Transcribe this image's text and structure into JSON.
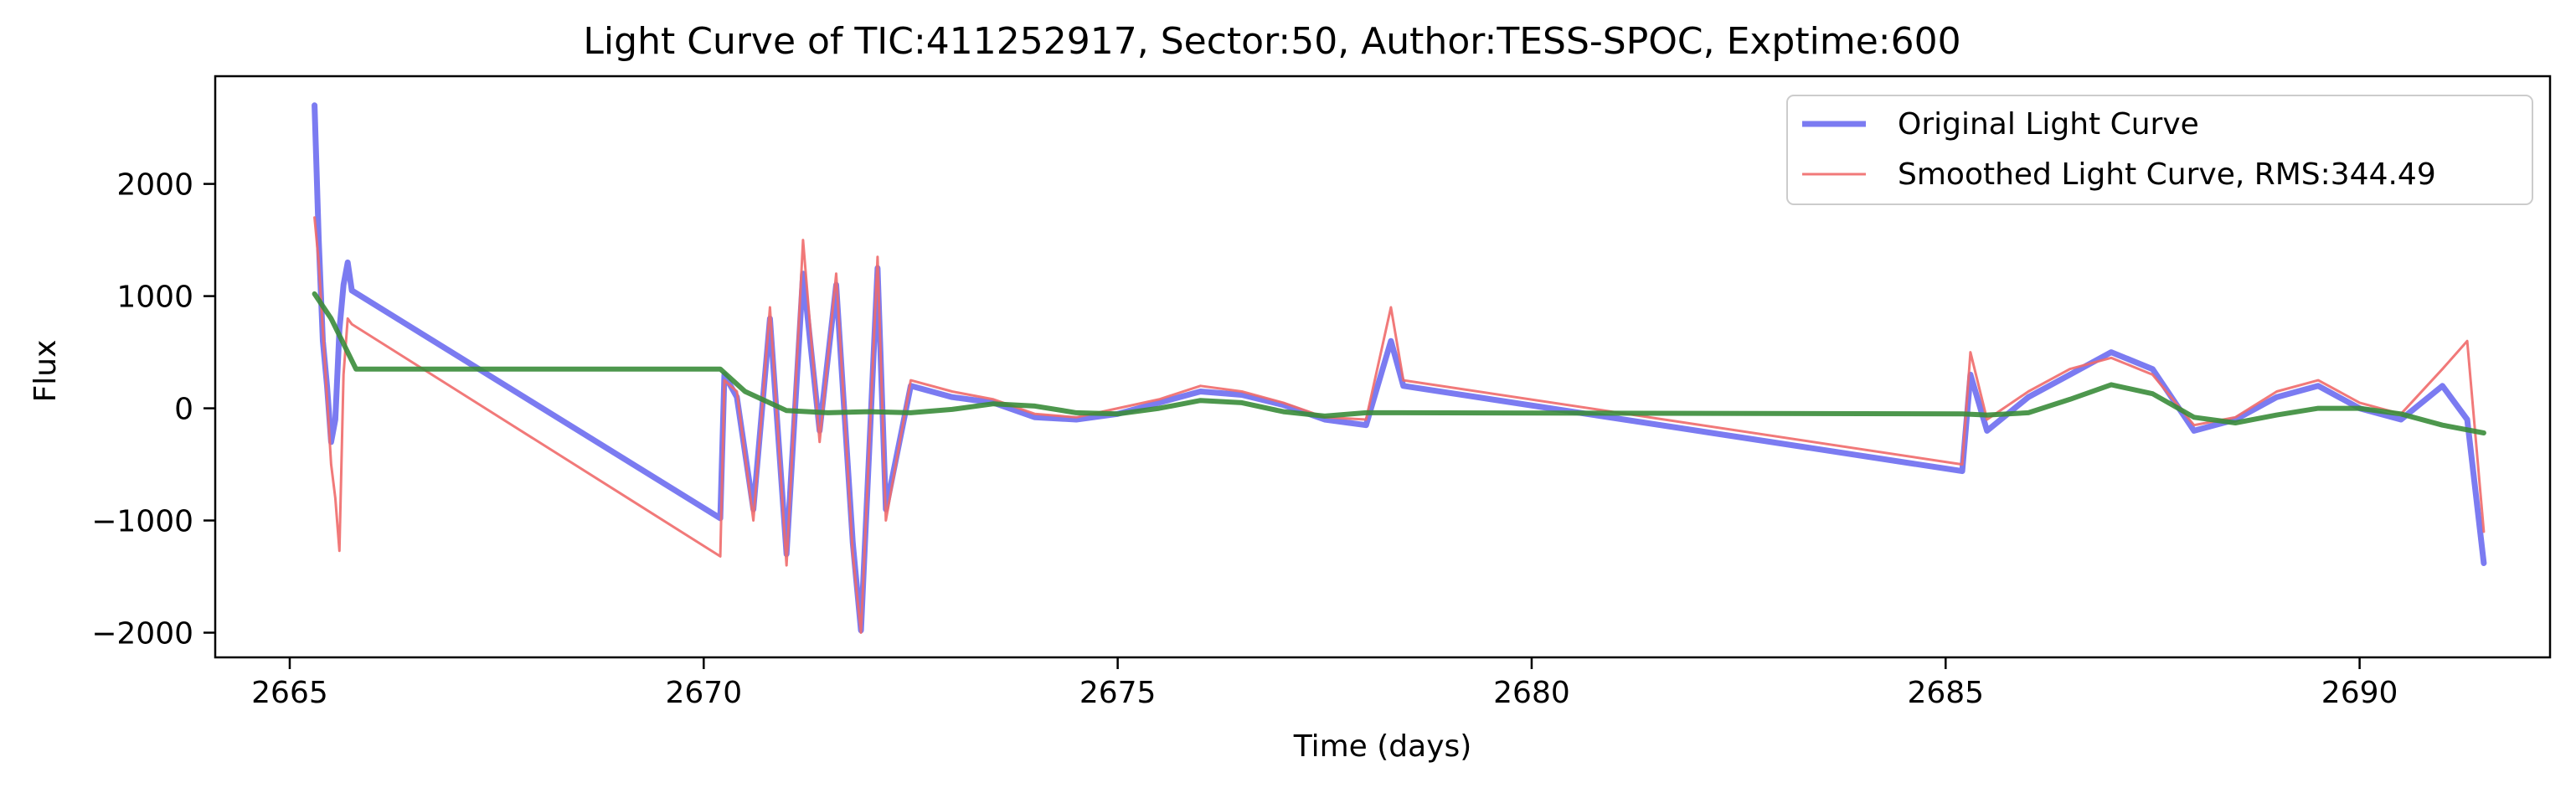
{
  "chart_data": {
    "type": "line",
    "title": "Light Curve of TIC:411252917, Sector:50, Author:TESS-SPOC, Exptime:600",
    "xlabel": "Time (days)",
    "ylabel": "Flux",
    "xlim": [
      2664.1,
      2692.3
    ],
    "ylim": [
      -2220,
      2960
    ],
    "xticks": [
      2665,
      2670,
      2675,
      2680,
      2685,
      2690
    ],
    "yticks": [
      -2000,
      -1000,
      0,
      1000,
      2000
    ],
    "xtick_labels": [
      "2665",
      "2670",
      "2675",
      "2680",
      "2685",
      "2690"
    ],
    "ytick_labels": [
      "−2000",
      "−1000",
      "0",
      "1000",
      "2000"
    ],
    "grid": false,
    "legend_position": "top-right",
    "series": [
      {
        "name": "Original Light Curve",
        "color": "#5a5aee",
        "points": [
          [
            2665.3,
            2700
          ],
          [
            2665.35,
            1500
          ],
          [
            2665.4,
            600
          ],
          [
            2665.45,
            200
          ],
          [
            2665.5,
            -300
          ],
          [
            2665.55,
            -100
          ],
          [
            2665.6,
            700
          ],
          [
            2665.65,
            1100
          ],
          [
            2665.7,
            1300
          ],
          [
            2665.75,
            1050
          ],
          [
            2670.2,
            -980
          ],
          [
            2670.25,
            300
          ],
          [
            2670.4,
            100
          ],
          [
            2670.6,
            -900
          ],
          [
            2670.8,
            800
          ],
          [
            2671.0,
            -1300
          ],
          [
            2671.2,
            1200
          ],
          [
            2671.4,
            -200
          ],
          [
            2671.6,
            1100
          ],
          [
            2671.8,
            -1200
          ],
          [
            2671.9,
            -1980
          ],
          [
            2672.1,
            1250
          ],
          [
            2672.2,
            -900
          ],
          [
            2672.5,
            200
          ],
          [
            2673.0,
            100
          ],
          [
            2673.5,
            50
          ],
          [
            2674.0,
            -80
          ],
          [
            2674.5,
            -100
          ],
          [
            2675.0,
            -50
          ],
          [
            2675.5,
            50
          ],
          [
            2676.0,
            150
          ],
          [
            2676.5,
            120
          ],
          [
            2677.0,
            30
          ],
          [
            2677.5,
            -100
          ],
          [
            2678.0,
            -150
          ],
          [
            2678.3,
            600
          ],
          [
            2678.45,
            200
          ],
          [
            2685.2,
            -560
          ],
          [
            2685.3,
            300
          ],
          [
            2685.5,
            -200
          ],
          [
            2686.0,
            100
          ],
          [
            2686.5,
            300
          ],
          [
            2687.0,
            500
          ],
          [
            2687.5,
            350
          ],
          [
            2688.0,
            -200
          ],
          [
            2688.5,
            -100
          ],
          [
            2689.0,
            100
          ],
          [
            2689.5,
            200
          ],
          [
            2690.0,
            0
          ],
          [
            2690.5,
            -100
          ],
          [
            2691.0,
            200
          ],
          [
            2691.3,
            -100
          ],
          [
            2691.5,
            -1380
          ]
        ]
      },
      {
        "name": "Smoothed Light Curve, RMS:344.49",
        "color": "#f06a6a",
        "points": [
          [
            2665.3,
            1700
          ],
          [
            2665.35,
            1300
          ],
          [
            2665.4,
            700
          ],
          [
            2665.45,
            100
          ],
          [
            2665.5,
            -500
          ],
          [
            2665.55,
            -800
          ],
          [
            2665.6,
            -1270
          ],
          [
            2665.65,
            300
          ],
          [
            2665.7,
            800
          ],
          [
            2665.75,
            750
          ],
          [
            2670.2,
            -1320
          ],
          [
            2670.25,
            250
          ],
          [
            2670.4,
            150
          ],
          [
            2670.6,
            -1000
          ],
          [
            2670.8,
            900
          ],
          [
            2671.0,
            -1400
          ],
          [
            2671.2,
            1500
          ],
          [
            2671.4,
            -300
          ],
          [
            2671.6,
            1200
          ],
          [
            2671.8,
            -1300
          ],
          [
            2671.9,
            -2000
          ],
          [
            2672.1,
            1350
          ],
          [
            2672.2,
            -1000
          ],
          [
            2672.5,
            250
          ],
          [
            2673.0,
            150
          ],
          [
            2673.5,
            80
          ],
          [
            2674.0,
            -50
          ],
          [
            2674.5,
            -80
          ],
          [
            2675.0,
            0
          ],
          [
            2675.5,
            80
          ],
          [
            2676.0,
            200
          ],
          [
            2676.5,
            150
          ],
          [
            2677.0,
            50
          ],
          [
            2677.5,
            -80
          ],
          [
            2678.0,
            -100
          ],
          [
            2678.3,
            900
          ],
          [
            2678.45,
            250
          ],
          [
            2685.2,
            -500
          ],
          [
            2685.3,
            500
          ],
          [
            2685.5,
            -100
          ],
          [
            2686.0,
            150
          ],
          [
            2686.5,
            350
          ],
          [
            2687.0,
            450
          ],
          [
            2687.5,
            300
          ],
          [
            2688.0,
            -150
          ],
          [
            2688.5,
            -80
          ],
          [
            2689.0,
            150
          ],
          [
            2689.5,
            250
          ],
          [
            2690.0,
            50
          ],
          [
            2690.5,
            -50
          ],
          [
            2691.0,
            350
          ],
          [
            2691.3,
            600
          ],
          [
            2691.5,
            -1100
          ]
        ]
      },
      {
        "name": "",
        "color": "#3a8c3a",
        "points": [
          [
            2665.3,
            1020
          ],
          [
            2665.5,
            800
          ],
          [
            2665.8,
            350
          ],
          [
            2670.2,
            350
          ],
          [
            2670.5,
            150
          ],
          [
            2671.0,
            -20
          ],
          [
            2671.5,
            -40
          ],
          [
            2672.0,
            -30
          ],
          [
            2672.5,
            -40
          ],
          [
            2673.0,
            -10
          ],
          [
            2673.5,
            40
          ],
          [
            2674.0,
            20
          ],
          [
            2674.5,
            -40
          ],
          [
            2675.0,
            -50
          ],
          [
            2675.5,
            0
          ],
          [
            2676.0,
            70
          ],
          [
            2676.5,
            50
          ],
          [
            2677.0,
            -30
          ],
          [
            2677.5,
            -70
          ],
          [
            2678.0,
            -40
          ],
          [
            2678.4,
            -40
          ],
          [
            2685.2,
            -50
          ],
          [
            2685.5,
            -60
          ],
          [
            2686.0,
            -40
          ],
          [
            2686.5,
            80
          ],
          [
            2687.0,
            210
          ],
          [
            2687.5,
            130
          ],
          [
            2688.0,
            -80
          ],
          [
            2688.5,
            -130
          ],
          [
            2689.0,
            -60
          ],
          [
            2689.5,
            0
          ],
          [
            2690.0,
            0
          ],
          [
            2690.5,
            -50
          ],
          [
            2691.0,
            -150
          ],
          [
            2691.5,
            -220
          ]
        ]
      }
    ]
  }
}
